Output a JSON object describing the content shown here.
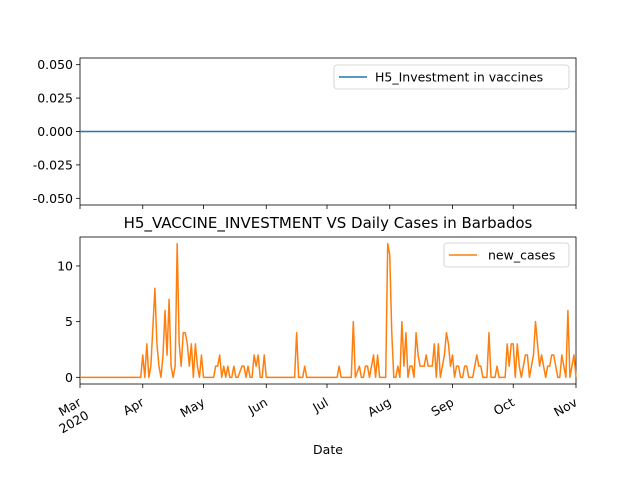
{
  "chart_data": [
    {
      "type": "line",
      "title": "",
      "xlabel": "",
      "ylabel": "",
      "ylim": [
        -0.055,
        0.055
      ],
      "yticks": [
        "0.050",
        "0.025",
        "0.000",
        "-0.025",
        "-0.050"
      ],
      "ytick_values": [
        0.05,
        0.025,
        0.0,
        -0.025,
        -0.05
      ],
      "grid": false,
      "legend_position": "top-right",
      "series": [
        {
          "name": "H5_Investment in vaccines",
          "color": "#1f77b4",
          "points": [
            [
              "2020-03-01",
              0
            ],
            [
              "2020-11-01",
              0
            ]
          ]
        }
      ]
    },
    {
      "type": "line",
      "title": "H5_VACCINE_INVESTMENT VS Daily Cases in Barbados",
      "xlabel": "Date",
      "ylabel": "",
      "ylim": [
        -0.6,
        12.6
      ],
      "yticks": [
        "0",
        "5",
        "10"
      ],
      "ytick_values": [
        0,
        5,
        10
      ],
      "xlim": [
        "2020-03-01",
        "2020-11-01"
      ],
      "xtick_dates": [
        "2020-03-01",
        "2020-04-01",
        "2020-05-01",
        "2020-06-01",
        "2020-07-01",
        "2020-08-01",
        "2020-09-01",
        "2020-10-01",
        "2020-11-01"
      ],
      "xtick_labels": [
        "Mar\n2020",
        "Apr",
        "May",
        "Jun",
        "Jul",
        "Aug",
        "Sep",
        "Oct",
        "Nov"
      ],
      "grid": false,
      "legend_position": "top-right",
      "series": [
        {
          "name": "new_cases",
          "color": "#ff7f0e",
          "points": [
            [
              "2020-03-01",
              0
            ],
            [
              "2020-03-31",
              0
            ],
            [
              "2020-04-01",
              2
            ],
            [
              "2020-04-02",
              0
            ],
            [
              "2020-04-03",
              3
            ],
            [
              "2020-04-04",
              0
            ],
            [
              "2020-04-05",
              1
            ],
            [
              "2020-04-07",
              8
            ],
            [
              "2020-04-08",
              3
            ],
            [
              "2020-04-09",
              1
            ],
            [
              "2020-04-10",
              0
            ],
            [
              "2020-04-11",
              2
            ],
            [
              "2020-04-12",
              6
            ],
            [
              "2020-04-13",
              2
            ],
            [
              "2020-04-14",
              7
            ],
            [
              "2020-04-15",
              1
            ],
            [
              "2020-04-16",
              0
            ],
            [
              "2020-04-17",
              1
            ],
            [
              "2020-04-18",
              12
            ],
            [
              "2020-04-19",
              3
            ],
            [
              "2020-04-20",
              1
            ],
            [
              "2020-04-21",
              4
            ],
            [
              "2020-04-22",
              4
            ],
            [
              "2020-04-23",
              3
            ],
            [
              "2020-04-24",
              1
            ],
            [
              "2020-04-25",
              3
            ],
            [
              "2020-04-26",
              0
            ],
            [
              "2020-04-27",
              3
            ],
            [
              "2020-04-28",
              1
            ],
            [
              "2020-04-29",
              0
            ],
            [
              "2020-04-30",
              2
            ],
            [
              "2020-05-01",
              0
            ],
            [
              "2020-05-06",
              0
            ],
            [
              "2020-05-07",
              1
            ],
            [
              "2020-05-08",
              1
            ],
            [
              "2020-05-09",
              2
            ],
            [
              "2020-05-10",
              0
            ],
            [
              "2020-05-11",
              1
            ],
            [
              "2020-05-12",
              0
            ],
            [
              "2020-05-13",
              1
            ],
            [
              "2020-05-14",
              0
            ],
            [
              "2020-05-15",
              0
            ],
            [
              "2020-05-16",
              1
            ],
            [
              "2020-05-17",
              0
            ],
            [
              "2020-05-18",
              0
            ],
            [
              "2020-05-20",
              1
            ],
            [
              "2020-05-21",
              1
            ],
            [
              "2020-05-22",
              0
            ],
            [
              "2020-05-23",
              1
            ],
            [
              "2020-05-24",
              0
            ],
            [
              "2020-05-25",
              0
            ],
            [
              "2020-05-26",
              2
            ],
            [
              "2020-05-27",
              1
            ],
            [
              "2020-05-28",
              2
            ],
            [
              "2020-05-29",
              0
            ],
            [
              "2020-05-30",
              0
            ],
            [
              "2020-05-31",
              2
            ],
            [
              "2020-06-01",
              0
            ],
            [
              "2020-06-15",
              0
            ],
            [
              "2020-06-16",
              4
            ],
            [
              "2020-06-17",
              0
            ],
            [
              "2020-06-19",
              0
            ],
            [
              "2020-06-20",
              1
            ],
            [
              "2020-06-21",
              0
            ],
            [
              "2020-07-06",
              0
            ],
            [
              "2020-07-07",
              1
            ],
            [
              "2020-07-08",
              0
            ],
            [
              "2020-07-13",
              0
            ],
            [
              "2020-07-14",
              5
            ],
            [
              "2020-07-15",
              0
            ],
            [
              "2020-07-17",
              1
            ],
            [
              "2020-07-18",
              0
            ],
            [
              "2020-07-19",
              0
            ],
            [
              "2020-07-20",
              1
            ],
            [
              "2020-07-21",
              1
            ],
            [
              "2020-07-22",
              0
            ],
            [
              "2020-07-24",
              2
            ],
            [
              "2020-07-25",
              0
            ],
            [
              "2020-07-26",
              2
            ],
            [
              "2020-07-27",
              0
            ],
            [
              "2020-07-30",
              0
            ],
            [
              "2020-07-31",
              12
            ],
            [
              "2020-08-01",
              11
            ],
            [
              "2020-08-02",
              4
            ],
            [
              "2020-08-03",
              0
            ],
            [
              "2020-08-04",
              0
            ],
            [
              "2020-08-05",
              1
            ],
            [
              "2020-08-06",
              0
            ],
            [
              "2020-08-07",
              5
            ],
            [
              "2020-08-08",
              1
            ],
            [
              "2020-08-09",
              4
            ],
            [
              "2020-08-10",
              0
            ],
            [
              "2020-08-11",
              1
            ],
            [
              "2020-08-12",
              1
            ],
            [
              "2020-08-13",
              0
            ],
            [
              "2020-08-14",
              4
            ],
            [
              "2020-08-15",
              2
            ],
            [
              "2020-08-16",
              1
            ],
            [
              "2020-08-17",
              1
            ],
            [
              "2020-08-18",
              1
            ],
            [
              "2020-08-19",
              2
            ],
            [
              "2020-08-20",
              1
            ],
            [
              "2020-08-21",
              1
            ],
            [
              "2020-08-22",
              1
            ],
            [
              "2020-08-23",
              3
            ],
            [
              "2020-08-24",
              0
            ],
            [
              "2020-08-25",
              3
            ],
            [
              "2020-08-26",
              0
            ],
            [
              "2020-08-27",
              1
            ],
            [
              "2020-08-28",
              2
            ],
            [
              "2020-08-29",
              4
            ],
            [
              "2020-08-30",
              3
            ],
            [
              "2020-08-31",
              1
            ],
            [
              "2020-09-01",
              2
            ],
            [
              "2020-09-02",
              0
            ],
            [
              "2020-09-03",
              1
            ],
            [
              "2020-09-04",
              1
            ],
            [
              "2020-09-05",
              0
            ],
            [
              "2020-09-06",
              0
            ],
            [
              "2020-09-07",
              1
            ],
            [
              "2020-09-08",
              1
            ],
            [
              "2020-09-09",
              0
            ],
            [
              "2020-09-10",
              0
            ],
            [
              "2020-09-11",
              0
            ],
            [
              "2020-09-12",
              1
            ],
            [
              "2020-09-13",
              2
            ],
            [
              "2020-09-14",
              1
            ],
            [
              "2020-09-15",
              1
            ],
            [
              "2020-09-16",
              0
            ],
            [
              "2020-09-18",
              0
            ],
            [
              "2020-09-19",
              4
            ],
            [
              "2020-09-20",
              0
            ],
            [
              "2020-09-22",
              0
            ],
            [
              "2020-09-23",
              1
            ],
            [
              "2020-09-24",
              0
            ],
            [
              "2020-09-27",
              0
            ],
            [
              "2020-09-28",
              3
            ],
            [
              "2020-09-29",
              1
            ],
            [
              "2020-09-30",
              3
            ],
            [
              "2020-10-01",
              3
            ],
            [
              "2020-10-02",
              0
            ],
            [
              "2020-10-03",
              3
            ],
            [
              "2020-10-04",
              1
            ],
            [
              "2020-10-05",
              0
            ],
            [
              "2020-10-06",
              1
            ],
            [
              "2020-10-07",
              2
            ],
            [
              "2020-10-08",
              2
            ],
            [
              "2020-10-09",
              0
            ],
            [
              "2020-10-10",
              1
            ],
            [
              "2020-10-11",
              2
            ],
            [
              "2020-10-12",
              5
            ],
            [
              "2020-10-13",
              3
            ],
            [
              "2020-10-14",
              1
            ],
            [
              "2020-10-15",
              2
            ],
            [
              "2020-10-16",
              1
            ],
            [
              "2020-10-17",
              0
            ],
            [
              "2020-10-18",
              1
            ],
            [
              "2020-10-19",
              1
            ],
            [
              "2020-10-20",
              2
            ],
            [
              "2020-10-21",
              2
            ],
            [
              "2020-10-22",
              1
            ],
            [
              "2020-10-23",
              0
            ],
            [
              "2020-10-24",
              0
            ],
            [
              "2020-10-25",
              2
            ],
            [
              "2020-10-26",
              1
            ],
            [
              "2020-10-27",
              0
            ],
            [
              "2020-10-28",
              6
            ],
            [
              "2020-10-29",
              0
            ],
            [
              "2020-10-30",
              1
            ],
            [
              "2020-10-31",
              2
            ],
            [
              "2020-11-01",
              0
            ]
          ]
        }
      ]
    }
  ]
}
